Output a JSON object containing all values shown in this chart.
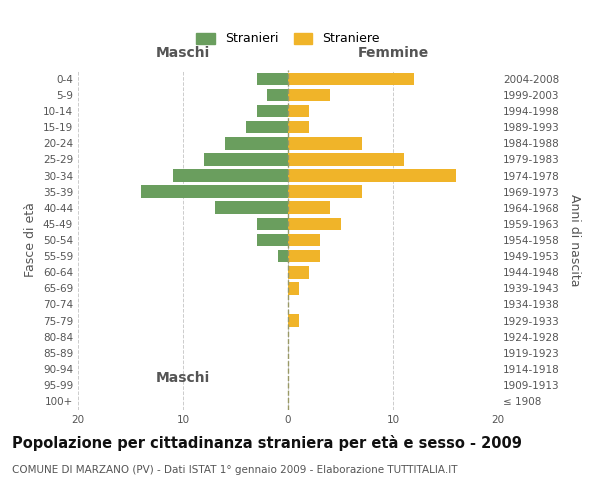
{
  "age_groups": [
    "100+",
    "95-99",
    "90-94",
    "85-89",
    "80-84",
    "75-79",
    "70-74",
    "65-69",
    "60-64",
    "55-59",
    "50-54",
    "45-49",
    "40-44",
    "35-39",
    "30-34",
    "25-29",
    "20-24",
    "15-19",
    "10-14",
    "5-9",
    "0-4"
  ],
  "birth_years": [
    "≤ 1908",
    "1909-1913",
    "1914-1918",
    "1919-1923",
    "1924-1928",
    "1929-1933",
    "1934-1938",
    "1939-1943",
    "1944-1948",
    "1949-1953",
    "1954-1958",
    "1959-1963",
    "1964-1968",
    "1969-1973",
    "1974-1978",
    "1979-1983",
    "1984-1988",
    "1989-1993",
    "1994-1998",
    "1999-2003",
    "2004-2008"
  ],
  "maschi": [
    0,
    0,
    0,
    0,
    0,
    0,
    0,
    0,
    0,
    1,
    3,
    3,
    7,
    14,
    11,
    8,
    6,
    4,
    3,
    2,
    3
  ],
  "femmine": [
    0,
    0,
    0,
    0,
    0,
    1,
    0,
    1,
    2,
    3,
    3,
    5,
    4,
    7,
    16,
    11,
    7,
    2,
    2,
    4,
    12
  ],
  "maschi_color": "#6a9e5e",
  "femmine_color": "#f0b429",
  "bar_height": 0.78,
  "xlim": [
    -20,
    20
  ],
  "title": "Popolazione per cittadinanza straniera per età e sesso - 2009",
  "subtitle": "COMUNE DI MARZANO (PV) - Dati ISTAT 1° gennaio 2009 - Elaborazione TUTTITALIA.IT",
  "ylabel_left": "Fasce di età",
  "ylabel_right": "Anni di nascita",
  "xlabel_maschi": "Maschi",
  "xlabel_femmine": "Femmine",
  "legend_stranieri": "Stranieri",
  "legend_straniere": "Straniere",
  "grid_color": "#cccccc",
  "background_color": "#ffffff",
  "title_fontsize": 10.5,
  "subtitle_fontsize": 7.5,
  "label_fontsize": 9,
  "tick_fontsize": 7.5,
  "header_fontsize": 10
}
